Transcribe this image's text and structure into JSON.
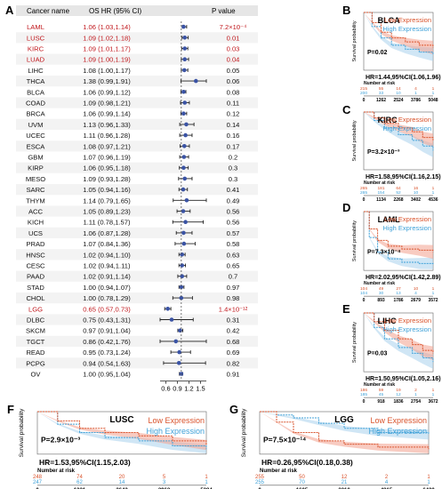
{
  "panel_letters": [
    "A",
    "B",
    "C",
    "D",
    "E",
    "F",
    "G"
  ],
  "forest": {
    "header": {
      "cancer": "Cancer name",
      "hr": "OS HR (95% CI)",
      "p": "P value"
    },
    "rows": [
      {
        "name": "LAML",
        "hr_text": "1.06 (1.03,1.14)",
        "p_text": "7.2×10⁻⁴",
        "hr": 1.06,
        "lo": 1.03,
        "hi": 1.14,
        "sig": true
      },
      {
        "name": "LUSC",
        "hr_text": "1.09 (1.02,1.18)",
        "p_text": "0.01",
        "hr": 1.09,
        "lo": 1.02,
        "hi": 1.18,
        "sig": true
      },
      {
        "name": "KIRC",
        "hr_text": "1.09 (1.01,1.17)",
        "p_text": "0.03",
        "hr": 1.09,
        "lo": 1.01,
        "hi": 1.17,
        "sig": true
      },
      {
        "name": "LUAD",
        "hr_text": "1.09 (1.00,1.19)",
        "p_text": "0.04",
        "hr": 1.09,
        "lo": 1.0,
        "hi": 1.19,
        "sig": true
      },
      {
        "name": "LIHC",
        "hr_text": "1.08 (1.00,1.17)",
        "p_text": "0.05",
        "hr": 1.08,
        "lo": 1.0,
        "hi": 1.17,
        "sig": false
      },
      {
        "name": "THCA",
        "hr_text": "1.38 (0.99,1.91)",
        "p_text": "0.06",
        "hr": 1.38,
        "lo": 0.99,
        "hi": 1.91,
        "sig": false
      },
      {
        "name": "BLCA",
        "hr_text": "1.06 (0.99,1.12)",
        "p_text": "0.08",
        "hr": 1.06,
        "lo": 0.99,
        "hi": 1.12,
        "sig": false
      },
      {
        "name": "COAD",
        "hr_text": "1.09 (0.98,1.21)",
        "p_text": "0.11",
        "hr": 1.09,
        "lo": 0.98,
        "hi": 1.21,
        "sig": false
      },
      {
        "name": "BRCA",
        "hr_text": "1.06 (0.99,1.14)",
        "p_text": "0.12",
        "hr": 1.06,
        "lo": 0.99,
        "hi": 1.14,
        "sig": false
      },
      {
        "name": "UVM",
        "hr_text": "1.13 (0.96,1.33)",
        "p_text": "0.14",
        "hr": 1.13,
        "lo": 0.96,
        "hi": 1.33,
        "sig": false
      },
      {
        "name": "UCEC",
        "hr_text": "1.11 (0.96,1.28)",
        "p_text": "0.16",
        "hr": 1.11,
        "lo": 0.96,
        "hi": 1.28,
        "sig": false
      },
      {
        "name": "ESCA",
        "hr_text": "1.08 (0.97,1.21)",
        "p_text": "0.17",
        "hr": 1.08,
        "lo": 0.97,
        "hi": 1.21,
        "sig": false
      },
      {
        "name": "GBM",
        "hr_text": "1.07 (0.96,1.19)",
        "p_text": "0.2",
        "hr": 1.07,
        "lo": 0.96,
        "hi": 1.19,
        "sig": false
      },
      {
        "name": "KIRP",
        "hr_text": "1.06 (0.95,1.18)",
        "p_text": "0.3",
        "hr": 1.06,
        "lo": 0.95,
        "hi": 1.18,
        "sig": false
      },
      {
        "name": "MESO",
        "hr_text": "1.09 (0.93,1.28)",
        "p_text": "0.3",
        "hr": 1.09,
        "lo": 0.93,
        "hi": 1.28,
        "sig": false
      },
      {
        "name": "SARC",
        "hr_text": "1.05 (0.94,1.16)",
        "p_text": "0.41",
        "hr": 1.05,
        "lo": 0.94,
        "hi": 1.16,
        "sig": false
      },
      {
        "name": "THYM",
        "hr_text": "1.14 (0.79,1.65)",
        "p_text": "0.49",
        "hr": 1.14,
        "lo": 0.79,
        "hi": 1.65,
        "sig": false
      },
      {
        "name": "ACC",
        "hr_text": "1.05 (0.89,1.23)",
        "p_text": "0.56",
        "hr": 1.05,
        "lo": 0.89,
        "hi": 1.23,
        "sig": false
      },
      {
        "name": "KICH",
        "hr_text": "1.11 (0.78,1.57)",
        "p_text": "0.56",
        "hr": 1.11,
        "lo": 0.78,
        "hi": 1.57,
        "sig": false
      },
      {
        "name": "UCS",
        "hr_text": "1.06 (0.87,1.28)",
        "p_text": "0.57",
        "hr": 1.06,
        "lo": 0.87,
        "hi": 1.28,
        "sig": false
      },
      {
        "name": "PRAD",
        "hr_text": "1.07 (0.84,1.36)",
        "p_text": "0.58",
        "hr": 1.07,
        "lo": 0.84,
        "hi": 1.36,
        "sig": false
      },
      {
        "name": "HNSC",
        "hr_text": "1.02 (0.94,1.10)",
        "p_text": "0.63",
        "hr": 1.02,
        "lo": 0.94,
        "hi": 1.1,
        "sig": false
      },
      {
        "name": "CESC",
        "hr_text": "1.02 (0.94,1.11)",
        "p_text": "0.65",
        "hr": 1.02,
        "lo": 0.94,
        "hi": 1.11,
        "sig": false
      },
      {
        "name": "PAAD",
        "hr_text": "1.02 (0.91,1.14)",
        "p_text": "0.7",
        "hr": 1.02,
        "lo": 0.91,
        "hi": 1.14,
        "sig": false
      },
      {
        "name": "STAD",
        "hr_text": "1.00 (0.94,1.07)",
        "p_text": "0.97",
        "hr": 1.0,
        "lo": 0.94,
        "hi": 1.07,
        "sig": false
      },
      {
        "name": "CHOL",
        "hr_text": "1.00 (0.78,1.29)",
        "p_text": "0.98",
        "hr": 1.0,
        "lo": 0.78,
        "hi": 1.29,
        "sig": false
      },
      {
        "name": "LGG",
        "hr_text": "0.65 (0.57,0.73)",
        "p_text": "1.4×10⁻¹²",
        "hr": 0.65,
        "lo": 0.57,
        "hi": 0.73,
        "sig": true
      },
      {
        "name": "DLBC",
        "hr_text": "0.75 (0.43,1.31)",
        "p_text": "0.31",
        "hr": 0.75,
        "lo": 0.43,
        "hi": 1.31,
        "sig": false
      },
      {
        "name": "SKCM",
        "hr_text": "0.97 (0.91,1.04)",
        "p_text": "0.42",
        "hr": 0.97,
        "lo": 0.91,
        "hi": 1.04,
        "sig": false
      },
      {
        "name": "TGCT",
        "hr_text": "0.86 (0.42,1.76)",
        "p_text": "0.68",
        "hr": 0.86,
        "lo": 0.42,
        "hi": 1.76,
        "sig": false
      },
      {
        "name": "READ",
        "hr_text": "0.95 (0.73,1.24)",
        "p_text": "0.69",
        "hr": 0.95,
        "lo": 0.73,
        "hi": 1.24,
        "sig": false
      },
      {
        "name": "PCPG",
        "hr_text": "0.94 (0.54,1.63)",
        "p_text": "0.82",
        "hr": 0.94,
        "lo": 0.54,
        "hi": 1.63,
        "sig": false
      },
      {
        "name": "OV",
        "hr_text": "1.00 (0.95,1.04)",
        "p_text": "0.91",
        "hr": 1.0,
        "lo": 0.95,
        "hi": 1.04,
        "sig": false
      }
    ],
    "ticks": [
      "0.6",
      "0.9",
      "1.2",
      "1.5"
    ],
    "xlim": [
      0.45,
      1.65
    ],
    "colors": {
      "sig_text": "#c0171c",
      "point": "#3a53a4",
      "box": "#dbe6f2",
      "ref": "#555555"
    }
  },
  "km": {
    "legend_low": "Low Expression",
    "legend_high": "High Expression",
    "ylabel": "Survival probability",
    "risk_label": "Number at risk",
    "colors": {
      "low": "#d9532c",
      "high": "#3fa1d8",
      "low_fill": "#f2a18e",
      "high_fill": "#a9d2ec"
    },
    "panels": [
      {
        "id": "B",
        "title": "BLCA",
        "p": "P=0.02",
        "hr": "HR=1.44,95%CI(1.06,1.96)",
        "x_ticks": [
          "0",
          "1262",
          "2524",
          "3786",
          "5048"
        ],
        "risk_low": [
          "215",
          "55",
          "14",
          "4",
          "1"
        ],
        "risk_high": [
          "200",
          "33",
          "10",
          "1",
          "1"
        ],
        "low": [
          [
            0,
            1
          ],
          [
            0.12,
            0.82
          ],
          [
            0.25,
            0.65
          ],
          [
            0.4,
            0.55
          ],
          [
            0.6,
            0.48
          ],
          [
            0.8,
            0.42
          ],
          [
            1,
            0.38
          ]
        ],
        "high": [
          [
            0,
            1
          ],
          [
            0.12,
            0.75
          ],
          [
            0.25,
            0.55
          ],
          [
            0.4,
            0.42
          ],
          [
            0.6,
            0.35
          ],
          [
            0.8,
            0.3
          ],
          [
            1,
            0.26
          ]
        ]
      },
      {
        "id": "C",
        "title": "KIRC",
        "p": "P=3.2×10⁻³",
        "hr": "HR=1.58,95%CI(1.16,2.15)",
        "x_ticks": [
          "0",
          "1134",
          "2268",
          "3402",
          "4536"
        ],
        "risk_low": [
          "265",
          "181",
          "64",
          "16",
          "1"
        ],
        "risk_high": [
          "265",
          "154",
          "52",
          "10",
          "1"
        ],
        "low": [
          [
            0,
            1
          ],
          [
            0.15,
            0.9
          ],
          [
            0.3,
            0.8
          ],
          [
            0.5,
            0.72
          ],
          [
            0.7,
            0.65
          ],
          [
            0.85,
            0.55
          ],
          [
            1,
            0.5
          ]
        ],
        "high": [
          [
            0,
            1
          ],
          [
            0.15,
            0.85
          ],
          [
            0.3,
            0.72
          ],
          [
            0.5,
            0.6
          ],
          [
            0.7,
            0.5
          ],
          [
            0.85,
            0.4
          ],
          [
            1,
            0.32
          ]
        ]
      },
      {
        "id": "D",
        "title": "LAML",
        "p": "P=7.3×10⁻⁴",
        "hr": "HR=2.02,95%CI(1.42,2.89)",
        "x_ticks": [
          "0",
          "893",
          "1786",
          "2679",
          "3572"
        ],
        "risk_low": [
          "104",
          "49",
          "27",
          "10",
          "1"
        ],
        "risk_high": [
          "104",
          "30",
          "13",
          "4",
          "1"
        ],
        "low": [
          [
            0,
            1
          ],
          [
            0.08,
            0.7
          ],
          [
            0.2,
            0.5
          ],
          [
            0.35,
            0.4
          ],
          [
            0.55,
            0.35
          ],
          [
            0.8,
            0.33
          ],
          [
            1,
            0.3
          ]
        ],
        "high": [
          [
            0,
            1
          ],
          [
            0.08,
            0.55
          ],
          [
            0.2,
            0.3
          ],
          [
            0.35,
            0.18
          ],
          [
            0.55,
            0.12
          ],
          [
            0.8,
            0.1
          ],
          [
            1,
            0.08
          ]
        ]
      },
      {
        "id": "E",
        "title": "LIHC",
        "p": "P=0.03",
        "hr": "HR=1.50,95%CI(1.05,2.16)",
        "x_ticks": [
          "0",
          "918",
          "1836",
          "2754",
          "3672"
        ],
        "risk_low": [
          "186",
          "59",
          "19",
          "2",
          "1"
        ],
        "risk_high": [
          "185",
          "45",
          "12",
          "1",
          "1"
        ],
        "low": [
          [
            0,
            1
          ],
          [
            0.15,
            0.85
          ],
          [
            0.3,
            0.7
          ],
          [
            0.5,
            0.55
          ],
          [
            0.7,
            0.45
          ],
          [
            0.85,
            0.35
          ],
          [
            1,
            0.3
          ]
        ],
        "high": [
          [
            0,
            1
          ],
          [
            0.15,
            0.75
          ],
          [
            0.3,
            0.55
          ],
          [
            0.5,
            0.4
          ],
          [
            0.7,
            0.3
          ],
          [
            0.85,
            0.22
          ],
          [
            1,
            0.15
          ]
        ]
      },
      {
        "id": "F",
        "title": "LUSC",
        "p": "P=2.9×10⁻³",
        "hr": "HR=1.53,95%CI(1.15,2.03)",
        "x_ticks": [
          "0",
          "1321",
          "2642",
          "3963",
          "5284"
        ],
        "risk_low": [
          "248",
          "74",
          "20",
          "5",
          "1"
        ],
        "risk_high": [
          "247",
          "62",
          "14",
          "3",
          "1"
        ],
        "low": [
          [
            0,
            1
          ],
          [
            0.12,
            0.78
          ],
          [
            0.25,
            0.6
          ],
          [
            0.4,
            0.5
          ],
          [
            0.6,
            0.42
          ],
          [
            0.8,
            0.3
          ],
          [
            1,
            0.2
          ]
        ],
        "high": [
          [
            0,
            1
          ],
          [
            0.12,
            0.7
          ],
          [
            0.25,
            0.5
          ],
          [
            0.4,
            0.38
          ],
          [
            0.6,
            0.3
          ],
          [
            0.8,
            0.18
          ],
          [
            1,
            0.1
          ]
        ]
      },
      {
        "id": "G",
        "title": "LGG",
        "p": "P=7.5×10⁻¹⁴",
        "hr": "HR=0.26,95%CI(0.18,0.38)",
        "x_ticks": [
          "0",
          "1605",
          "3210",
          "4815",
          "6420"
        ],
        "risk_low": [
          "255",
          "50",
          "12",
          "2",
          "1"
        ],
        "risk_high": [
          "255",
          "70",
          "21",
          "4",
          "1"
        ],
        "low": [
          [
            0,
            1
          ],
          [
            0.1,
            0.75
          ],
          [
            0.2,
            0.5
          ],
          [
            0.35,
            0.3
          ],
          [
            0.5,
            0.22
          ],
          [
            0.7,
            0.15
          ],
          [
            1,
            0.1
          ]
        ],
        "high": [
          [
            0,
            1
          ],
          [
            0.1,
            0.92
          ],
          [
            0.2,
            0.85
          ],
          [
            0.35,
            0.72
          ],
          [
            0.5,
            0.6
          ],
          [
            0.7,
            0.5
          ],
          [
            1,
            0.45
          ]
        ]
      }
    ]
  }
}
